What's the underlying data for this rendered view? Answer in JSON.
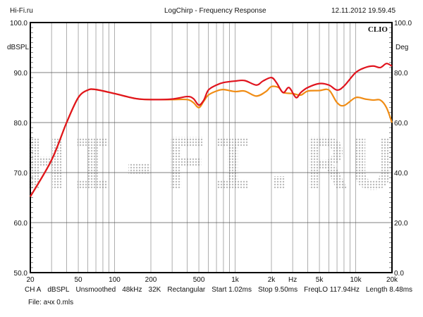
{
  "header": {
    "left": "Hi-Fi.ru",
    "center": "LogChirp - Frequency Response",
    "right": "12.11.2012 19.59.45"
  },
  "brand": "CLIO",
  "watermark": "HI-FI.RU",
  "footer": {
    "settings": [
      "CH A",
      "dBSPL",
      "Unsmoothed",
      "48kHz",
      "32K",
      "Rectangular",
      "Start 1.02ms",
      "Stop 9.50ms",
      "FreqLO 117.94Hz",
      "Length 8.48ms"
    ],
    "file": "File: aчх 0.mls"
  },
  "chart_data": {
    "type": "line",
    "title": "LogChirp - Frequency Response",
    "xlabel": "Hz",
    "ylabel": "dBSPL",
    "y2label": "Deg",
    "xscale": "log",
    "xlim": [
      20,
      20000
    ],
    "ylim": [
      50,
      100
    ],
    "y2lim": [
      0,
      100
    ],
    "grid": true,
    "x_ticks": [
      {
        "v": 20,
        "l": "20"
      },
      {
        "v": 50,
        "l": "50"
      },
      {
        "v": 100,
        "l": "100"
      },
      {
        "v": 200,
        "l": "200"
      },
      {
        "v": 500,
        "l": "500"
      },
      {
        "v": 1000,
        "l": "1k"
      },
      {
        "v": 2000,
        "l": "2k"
      },
      {
        "v": 3000,
        "l": "Hz"
      },
      {
        "v": 5000,
        "l": "5k"
      },
      {
        "v": 10000,
        "l": "10k"
      },
      {
        "v": 20000,
        "l": "20k"
      }
    ],
    "y_ticks": [
      "50.0",
      "60.0",
      "70.0",
      "80.0",
      "90.0",
      "100.0"
    ],
    "y2_ticks": [
      "0.0",
      "20.0",
      "40.0",
      "60.0",
      "80.0",
      "100.0"
    ],
    "series": [
      {
        "name": "red",
        "color": "#e0141e",
        "x": [
          20,
          30,
          40,
          50,
          60,
          70,
          100,
          150,
          200,
          300,
          400,
          450,
          500,
          550,
          600,
          700,
          800,
          1000,
          1200,
          1500,
          1700,
          2000,
          2200,
          2500,
          2800,
          3200,
          3500,
          4000,
          5000,
          6000,
          7000,
          8000,
          10000,
          12000,
          14000,
          16000,
          18000,
          20000
        ],
        "y": [
          65.2,
          72.5,
          80,
          85,
          86.5,
          86.6,
          85.8,
          84.8,
          84.6,
          84.7,
          85.2,
          84.8,
          83.5,
          84.5,
          86.5,
          87.5,
          88,
          88.3,
          88.4,
          87.5,
          88.3,
          89,
          88,
          86,
          87,
          85,
          86,
          87,
          87.8,
          87.5,
          86.5,
          87.3,
          90,
          91,
          91.3,
          91,
          91.8,
          91.3
        ]
      },
      {
        "name": "orange",
        "color": "#f08c14",
        "x": [
          20,
          30,
          40,
          50,
          60,
          70,
          100,
          150,
          200,
          300,
          400,
          450,
          500,
          550,
          600,
          700,
          800,
          1000,
          1200,
          1500,
          1800,
          2000,
          2300,
          2500,
          3000,
          3500,
          4000,
          5000,
          6000,
          7000,
          8000,
          10000,
          12000,
          14000,
          16000,
          18000,
          20000
        ],
        "y": [
          65.2,
          72.5,
          80,
          85,
          86.5,
          86.6,
          85.8,
          84.8,
          84.6,
          84.6,
          84.6,
          84,
          83,
          84.3,
          85.5,
          86.3,
          86.6,
          86.2,
          86.3,
          85.3,
          86.2,
          87.2,
          87,
          86,
          85.8,
          85.5,
          86.3,
          86.4,
          86.5,
          84,
          83.4,
          85,
          84.7,
          84.5,
          84.5,
          83,
          80
        ]
      }
    ]
  }
}
